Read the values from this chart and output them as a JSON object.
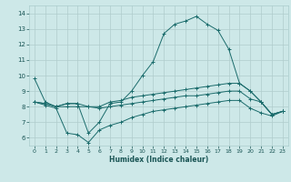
{
  "xlabel": "Humidex (Indice chaleur)",
  "background_color": "#cde8e8",
  "grid_color": "#b0cccc",
  "line_color": "#1a6b6b",
  "xlim": [
    -0.5,
    23.5
  ],
  "ylim": [
    5.5,
    14.5
  ],
  "xticks": [
    0,
    1,
    2,
    3,
    4,
    5,
    6,
    7,
    8,
    9,
    10,
    11,
    12,
    13,
    14,
    15,
    16,
    17,
    18,
    19,
    20,
    21,
    22,
    23
  ],
  "yticks": [
    6,
    7,
    8,
    9,
    10,
    11,
    12,
    13,
    14
  ],
  "curve1_x": [
    0,
    1,
    2,
    3,
    4,
    5,
    6,
    7,
    8,
    9,
    10,
    11,
    12,
    13,
    14,
    15,
    16,
    17,
    18,
    19,
    20,
    21,
    22,
    23
  ],
  "curve1_y": [
    9.8,
    8.3,
    8.0,
    8.2,
    8.2,
    6.3,
    7.0,
    8.2,
    8.3,
    9.0,
    10.0,
    10.9,
    12.7,
    13.3,
    13.5,
    13.8,
    13.3,
    12.9,
    11.7,
    9.5,
    9.0,
    8.3,
    7.5,
    7.7
  ],
  "curve2_x": [
    0,
    1,
    2,
    3,
    4,
    5,
    6,
    7,
    8,
    9,
    10,
    11,
    12,
    13,
    14,
    15,
    16,
    17,
    18,
    19,
    20,
    21,
    22,
    23
  ],
  "curve2_y": [
    8.3,
    8.2,
    8.0,
    8.2,
    8.2,
    8.0,
    8.0,
    8.3,
    8.4,
    8.6,
    8.7,
    8.8,
    8.9,
    9.0,
    9.1,
    9.2,
    9.3,
    9.4,
    9.5,
    9.5,
    9.0,
    8.3,
    7.5,
    7.7
  ],
  "curve3_x": [
    0,
    1,
    2,
    3,
    4,
    5,
    6,
    7,
    8,
    9,
    10,
    11,
    12,
    13,
    14,
    15,
    16,
    17,
    18,
    19,
    20,
    21,
    22,
    23
  ],
  "curve3_y": [
    8.3,
    8.2,
    8.0,
    8.0,
    8.0,
    8.0,
    7.9,
    8.0,
    8.1,
    8.2,
    8.3,
    8.4,
    8.5,
    8.6,
    8.7,
    8.7,
    8.8,
    8.9,
    9.0,
    9.0,
    8.5,
    8.3,
    7.5,
    7.7
  ],
  "curve4_x": [
    0,
    1,
    2,
    3,
    4,
    5,
    6,
    7,
    8,
    9,
    10,
    11,
    12,
    13,
    14,
    15,
    16,
    17,
    18,
    19,
    20,
    21,
    22,
    23
  ],
  "curve4_y": [
    8.3,
    8.1,
    7.9,
    6.3,
    6.2,
    5.7,
    6.5,
    6.8,
    7.0,
    7.3,
    7.5,
    7.7,
    7.8,
    7.9,
    8.0,
    8.1,
    8.2,
    8.3,
    8.4,
    8.4,
    7.9,
    7.6,
    7.4,
    7.7
  ]
}
